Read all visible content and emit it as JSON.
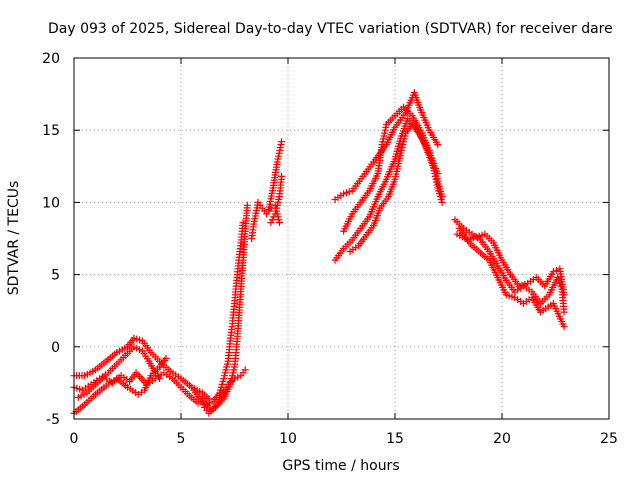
{
  "chart_data": {
    "type": "scatter",
    "title": "Day 093 of 2025, Sidereal Day-to-day VTEC variation (SDTVAR) for receiver dare",
    "xlabel": "GPS time / hours",
    "ylabel": "SDTVAR / TECUs",
    "xlim": [
      0,
      25
    ],
    "ylim": [
      -5,
      20
    ],
    "xticks": [
      0,
      5,
      10,
      15,
      20,
      25
    ],
    "yticks": [
      -5,
      0,
      5,
      10,
      15,
      20
    ],
    "grid": true,
    "marker": "+",
    "color": "#ff0000",
    "series": [
      {
        "name": "SDTVAR",
        "tracks": [
          [
            [
              0.0,
              -2.0
            ],
            [
              0.5,
              -2.0
            ],
            [
              1.0,
              -1.6
            ],
            [
              1.5,
              -1.0
            ],
            [
              2.0,
              -0.4
            ],
            [
              2.5,
              0.0
            ],
            [
              2.8,
              0.6
            ],
            [
              3.2,
              0.4
            ],
            [
              3.6,
              -0.4
            ],
            [
              4.0,
              -1.0
            ],
            [
              4.5,
              -1.7
            ],
            [
              5.0,
              -2.2
            ],
            [
              5.5,
              -2.8
            ],
            [
              6.0,
              -3.2
            ],
            [
              6.3,
              -3.6
            ]
          ],
          [
            [
              0.0,
              -2.8
            ],
            [
              0.4,
              -3.0
            ],
            [
              0.8,
              -2.6
            ],
            [
              1.2,
              -2.2
            ],
            [
              1.6,
              -1.8
            ],
            [
              2.0,
              -1.2
            ],
            [
              2.4,
              -0.6
            ],
            [
              2.8,
              0.0
            ],
            [
              3.2,
              -0.3
            ],
            [
              3.5,
              -1.0
            ],
            [
              3.8,
              -1.8
            ],
            [
              4.0,
              -2.2
            ]
          ],
          [
            [
              0.0,
              -4.6
            ],
            [
              0.5,
              -4.0
            ],
            [
              1.0,
              -3.3
            ],
            [
              1.5,
              -2.7
            ],
            [
              2.0,
              -2.2
            ],
            [
              2.5,
              -2.8
            ],
            [
              3.0,
              -3.3
            ],
            [
              3.3,
              -3.0
            ],
            [
              3.6,
              -2.0
            ],
            [
              4.0,
              -1.4
            ],
            [
              4.3,
              -0.8
            ]
          ],
          [
            [
              0.2,
              -3.5
            ],
            [
              0.6,
              -3.2
            ],
            [
              1.0,
              -2.6
            ],
            [
              1.4,
              -2.1
            ],
            [
              1.8,
              -2.5
            ],
            [
              2.2,
              -2.0
            ],
            [
              2.6,
              -2.4
            ],
            [
              2.9,
              -1.8
            ],
            [
              3.4,
              -2.6
            ],
            [
              3.8,
              -2.2
            ],
            [
              4.2,
              -1.8
            ],
            [
              4.6,
              -2.2
            ],
            [
              5.0,
              -2.8
            ],
            [
              5.4,
              -3.4
            ],
            [
              5.8,
              -3.9
            ]
          ],
          [
            [
              5.6,
              -3.0
            ],
            [
              5.9,
              -3.6
            ],
            [
              6.1,
              -4.2
            ],
            [
              6.3,
              -4.6
            ],
            [
              6.6,
              -4.2
            ],
            [
              7.0,
              -3.6
            ],
            [
              7.3,
              -2.6
            ],
            [
              7.5,
              -1.4
            ],
            [
              7.6,
              0.0
            ],
            [
              7.7,
              2.0
            ],
            [
              7.8,
              4.0
            ],
            [
              7.9,
              6.0
            ],
            [
              8.0,
              8.0
            ],
            [
              8.1,
              9.8
            ]
          ],
          [
            [
              6.2,
              -4.0
            ],
            [
              6.5,
              -3.8
            ],
            [
              6.8,
              -3.2
            ],
            [
              7.0,
              -2.2
            ],
            [
              7.2,
              -1.0
            ],
            [
              7.3,
              0.4
            ],
            [
              7.4,
              1.6
            ],
            [
              7.5,
              3.0
            ],
            [
              7.6,
              4.6
            ],
            [
              7.7,
              6.0
            ],
            [
              7.8,
              7.2
            ],
            [
              7.9,
              8.6
            ]
          ],
          [
            [
              6.0,
              -3.6
            ],
            [
              6.4,
              -4.4
            ],
            [
              6.7,
              -4.0
            ],
            [
              7.0,
              -3.0
            ],
            [
              7.2,
              -2.6
            ],
            [
              7.5,
              -2.2
            ],
            [
              7.8,
              -2.0
            ],
            [
              8.0,
              -1.6
            ]
          ],
          [
            [
              8.3,
              7.5
            ],
            [
              8.4,
              8.5
            ],
            [
              8.6,
              10.0
            ],
            [
              8.8,
              9.6
            ],
            [
              9.0,
              9.2
            ],
            [
              9.2,
              9.6
            ],
            [
              9.4,
              9.8
            ],
            [
              9.6,
              8.6
            ]
          ],
          [
            [
              9.1,
              9.5
            ],
            [
              9.3,
              11.0
            ],
            [
              9.5,
              12.8
            ],
            [
              9.7,
              14.2
            ]
          ],
          [
            [
              9.2,
              8.6
            ],
            [
              9.4,
              9.2
            ],
            [
              9.6,
              10.4
            ],
            [
              9.7,
              11.8
            ]
          ],
          [
            [
              12.2,
              10.2
            ],
            [
              12.6,
              10.6
            ],
            [
              13.0,
              10.8
            ],
            [
              13.5,
              11.8
            ],
            [
              14.0,
              12.8
            ],
            [
              14.3,
              13.4
            ],
            [
              14.6,
              14.0
            ],
            [
              15.0,
              15.2
            ],
            [
              15.5,
              16.2
            ],
            [
              15.9,
              17.6
            ],
            [
              16.2,
              16.4
            ],
            [
              16.6,
              15.0
            ],
            [
              17.0,
              14.0
            ]
          ],
          [
            [
              12.2,
              6.0
            ],
            [
              12.6,
              6.8
            ],
            [
              13.0,
              7.4
            ],
            [
              13.4,
              8.2
            ],
            [
              13.8,
              9.0
            ],
            [
              14.2,
              10.4
            ],
            [
              14.6,
              11.6
            ],
            [
              15.0,
              13.0
            ],
            [
              15.3,
              14.6
            ],
            [
              15.6,
              15.8
            ],
            [
              16.0,
              15.2
            ],
            [
              16.4,
              14.0
            ],
            [
              16.8,
              12.4
            ],
            [
              17.0,
              11.0
            ],
            [
              17.2,
              10.0
            ]
          ],
          [
            [
              12.6,
              8.0
            ],
            [
              13.0,
              9.2
            ],
            [
              13.4,
              10.0
            ],
            [
              13.8,
              10.8
            ],
            [
              14.2,
              12.0
            ],
            [
              14.4,
              14.0
            ],
            [
              14.6,
              15.4
            ],
            [
              15.0,
              16.0
            ],
            [
              15.4,
              16.6
            ],
            [
              15.8,
              16.0
            ],
            [
              16.2,
              15.0
            ],
            [
              16.6,
              13.6
            ],
            [
              16.9,
              12.0
            ],
            [
              17.2,
              10.4
            ]
          ],
          [
            [
              12.9,
              6.6
            ],
            [
              13.3,
              7.0
            ],
            [
              13.6,
              7.6
            ],
            [
              14.0,
              8.4
            ],
            [
              14.3,
              9.6
            ],
            [
              14.7,
              10.4
            ],
            [
              15.0,
              11.6
            ],
            [
              15.3,
              13.6
            ],
            [
              15.5,
              14.8
            ],
            [
              15.8,
              15.4
            ],
            [
              16.2,
              14.6
            ],
            [
              16.6,
              13.4
            ],
            [
              17.0,
              12.0
            ]
          ],
          [
            [
              17.8,
              8.8
            ],
            [
              18.2,
              8.2
            ],
            [
              18.6,
              7.8
            ],
            [
              19.0,
              7.4
            ],
            [
              19.4,
              6.6
            ],
            [
              19.8,
              5.6
            ],
            [
              20.2,
              4.6
            ],
            [
              20.6,
              3.8
            ],
            [
              21.0,
              4.2
            ],
            [
              21.4,
              3.8
            ],
            [
              21.8,
              3.0
            ],
            [
              22.2,
              3.6
            ],
            [
              22.6,
              4.8
            ],
            [
              22.8,
              4.0
            ],
            [
              22.9,
              2.4
            ]
          ],
          [
            [
              17.9,
              7.8
            ],
            [
              18.4,
              7.4
            ],
            [
              18.8,
              7.6
            ],
            [
              19.2,
              7.8
            ],
            [
              19.6,
              7.2
            ],
            [
              20.0,
              6.0
            ],
            [
              20.4,
              5.0
            ],
            [
              20.8,
              4.2
            ],
            [
              21.2,
              4.4
            ],
            [
              21.6,
              4.8
            ],
            [
              22.0,
              4.2
            ],
            [
              22.4,
              5.2
            ],
            [
              22.7,
              5.4
            ],
            [
              22.9,
              3.6
            ]
          ],
          [
            [
              18.0,
              8.2
            ],
            [
              18.6,
              7.0
            ],
            [
              19.4,
              6.0
            ],
            [
              19.8,
              4.8
            ],
            [
              20.2,
              3.6
            ],
            [
              20.6,
              3.4
            ],
            [
              21.0,
              3.0
            ],
            [
              21.4,
              3.4
            ],
            [
              21.8,
              2.4
            ],
            [
              22.4,
              3.0
            ],
            [
              22.9,
              1.4
            ]
          ]
        ]
      }
    ]
  }
}
